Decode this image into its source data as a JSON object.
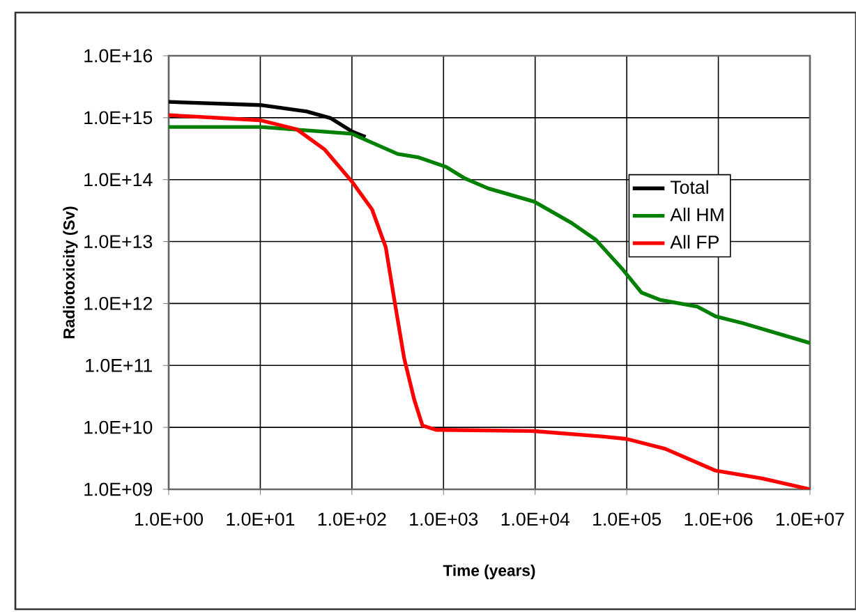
{
  "chart_data": {
    "type": "line",
    "xlabel": "Time (years)",
    "ylabel": "Radiotoxicity (Sv)",
    "log": "xy",
    "grid": true,
    "legend": "right",
    "xlim": [
      1,
      10000000
    ],
    "ylim": [
      1000000000,
      10000000000000000
    ],
    "xticks": [
      {
        "value": 1,
        "label": "1.0E+00"
      },
      {
        "value": 10,
        "label": "1.0E+01"
      },
      {
        "value": 100,
        "label": "1.0E+02"
      },
      {
        "value": 1000,
        "label": "1.0E+03"
      },
      {
        "value": 10000,
        "label": "1.0E+04"
      },
      {
        "value": 100000,
        "label": "1.0E+05"
      },
      {
        "value": 1000000,
        "label": "1.0E+06"
      },
      {
        "value": 10000000,
        "label": "1.0E+07"
      }
    ],
    "yticks": [
      {
        "value": 1000000000.0,
        "label": "1.0E+09"
      },
      {
        "value": 10000000000.0,
        "label": "1.0E+10"
      },
      {
        "value": 100000000000.0,
        "label": "1.0E+11"
      },
      {
        "value": 1000000000000.0,
        "label": "1.0E+12"
      },
      {
        "value": 10000000000000.0,
        "label": "1.0E+13"
      },
      {
        "value": 100000000000000.0,
        "label": "1.0E+14"
      },
      {
        "value": 1000000000000000.0,
        "label": "1.0E+15"
      },
      {
        "value": 1e+16,
        "label": "1.0E+16"
      }
    ],
    "series": [
      {
        "name": "Total",
        "color": "#000000",
        "x": [
          1,
          10,
          32,
          59,
          100,
          141
        ],
        "values": [
          1800000000000000.0,
          1600000000000000.0,
          1260000000000000.0,
          980000000000000.0,
          600000000000000.0,
          490000000000000.0
        ]
      },
      {
        "name": "All HM",
        "color": "#008000",
        "x": [
          1,
          10,
          100,
          316,
          525,
          1070,
          1700,
          3090,
          9800,
          25000,
          46000,
          91000,
          145000,
          229000,
          589000,
          933000,
          1860000,
          10000000
        ],
        "values": [
          710000000000000.0,
          710000000000000.0,
          550000000000000.0,
          260000000000000.0,
          230000000000000.0,
          160000000000000.0,
          105000000000000.0,
          72000000000000.0,
          44000000000000.0,
          20000000000000.0,
          10700000000000.0,
          3500000000000.0,
          1500000000000.0,
          1150000000000.0,
          890000000000.0,
          620000000000.0,
          480000000000.0,
          230000000000.0
        ]
      },
      {
        "name": "All FP",
        "color": "#ff0000",
        "x": [
          1,
          10,
          25,
          50,
          100,
          166,
          234,
          295,
          372,
          479,
          589,
          832,
          955,
          9800,
          56000,
          100000,
          263000,
          933000,
          3000000,
          10000000
        ],
        "values": [
          1100000000000000.0,
          910000000000000.0,
          650000000000000.0,
          310000000000000.0,
          93000000000000.0,
          33000000000000.0,
          8100000000000.0,
          1000000000000.0,
          130000000000.0,
          28000000000.0,
          10700000000.0,
          9100000000.0,
          9100000000.0,
          8700000000.0,
          7100000000.0,
          6500000000.0,
          4500000000.0,
          2000000000.0,
          1500000000.0,
          1000000000.0
        ]
      }
    ]
  }
}
